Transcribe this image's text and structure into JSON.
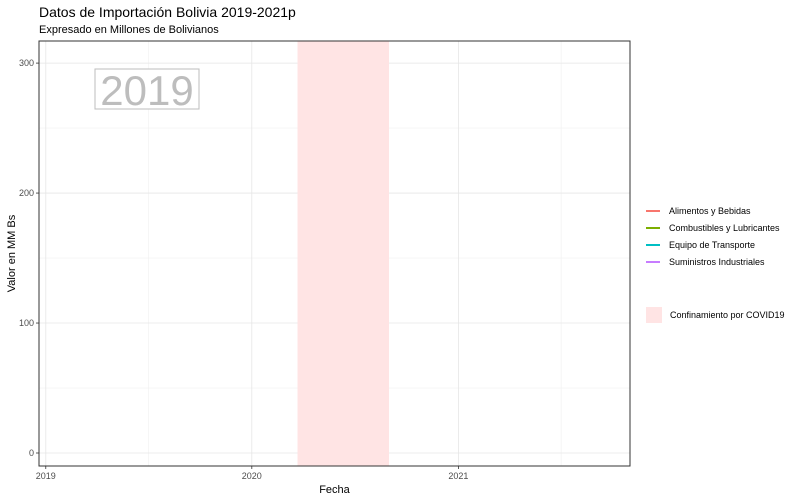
{
  "chart_data": {
    "type": "line",
    "title": "Datos de Importación Bolivia 2019-2021p",
    "subtitle": "Expresado en Millones de Bolivianos",
    "xlabel": "Fecha",
    "ylabel": "Valor en MM Bs",
    "x_ticks": [
      "2019",
      "2020",
      "2021"
    ],
    "y_ticks": [
      0,
      100,
      200,
      300
    ],
    "xlim": [
      "2018-12-20",
      "2021-11-01"
    ],
    "ylim": [
      -10,
      317
    ],
    "grid": true,
    "year_label": "2019",
    "series": [
      {
        "name": "Alimentos y Bebidas",
        "color": "#F8766D",
        "values": []
      },
      {
        "name": "Combustibles y Lubricantes",
        "color": "#7CAE00",
        "values": []
      },
      {
        "name": "Equipo de Transporte",
        "color": "#00BFC4",
        "values": []
      },
      {
        "name": "Suministros Industriales",
        "color": "#C77CFF",
        "values": []
      }
    ],
    "shaded_region": {
      "label": "Confinamiento por COVID19",
      "start": "2020-03-22",
      "end": "2020-08-31",
      "color": "#FFE4E4"
    },
    "legend_position": "right"
  }
}
